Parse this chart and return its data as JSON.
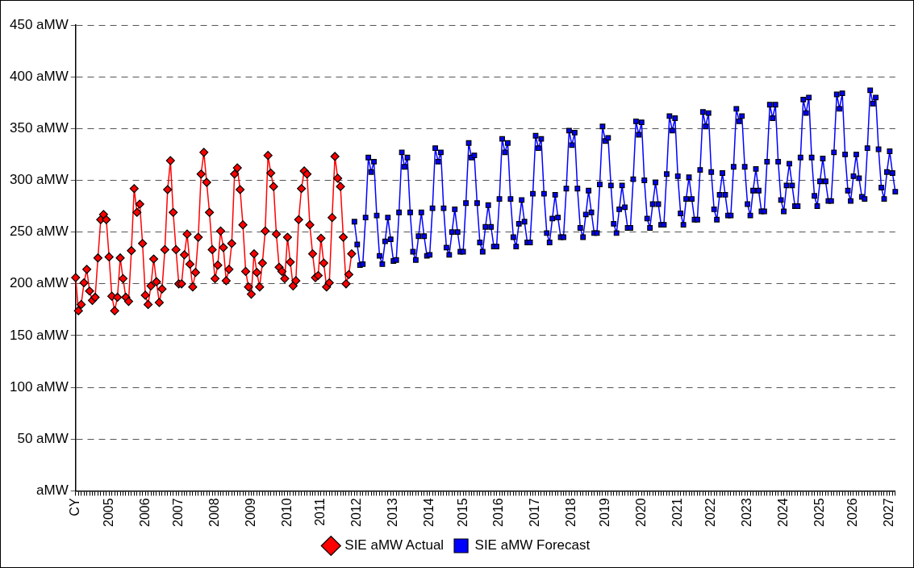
{
  "chart_data": {
    "type": "line",
    "categories": [
      "CY",
      null,
      null,
      null,
      null,
      null,
      null,
      null,
      null,
      null,
      null,
      null,
      "2005",
      null,
      null,
      null,
      null,
      null,
      null,
      null,
      null,
      null,
      null,
      null,
      null,
      "2006",
      null,
      null,
      null,
      null,
      null,
      null,
      null,
      null,
      null,
      null,
      null,
      "2007",
      null,
      null,
      null,
      null,
      null,
      null,
      null,
      null,
      null,
      null,
      null,
      null,
      "2008",
      null,
      null,
      null,
      null,
      null,
      null,
      null,
      null,
      null,
      null,
      null,
      null,
      "2009",
      null,
      null,
      null,
      null,
      null,
      null,
      null,
      null,
      null,
      null,
      null,
      null,
      "2010",
      null,
      null,
      null,
      null,
      null,
      null,
      null,
      null,
      null,
      null,
      null,
      "2011",
      null,
      null,
      null,
      null,
      null,
      null,
      null,
      null,
      null,
      null,
      null,
      null,
      "2012",
      null,
      null,
      null,
      null,
      null,
      null,
      null,
      null,
      null,
      null,
      null,
      null,
      "2013",
      null,
      null,
      null,
      null,
      null,
      null,
      null,
      null,
      null,
      null,
      null,
      null,
      "2014",
      null,
      null,
      null,
      null,
      null,
      null,
      null,
      null,
      null,
      null,
      null,
      "2015",
      null,
      null,
      null,
      null,
      null,
      null,
      null,
      null,
      null,
      null,
      null,
      null,
      "2016",
      null,
      null,
      null,
      null,
      null,
      null,
      null,
      null,
      null,
      null,
      null,
      null,
      "2017",
      null,
      null,
      null,
      null,
      null,
      null,
      null,
      null,
      null,
      null,
      null,
      null,
      "2018",
      null,
      null,
      null,
      null,
      null,
      null,
      null,
      null,
      null,
      null,
      null,
      "2019",
      null,
      null,
      null,
      null,
      null,
      null,
      null,
      null,
      null,
      null,
      null,
      null,
      "2020",
      null,
      null,
      null,
      null,
      null,
      null,
      null,
      null,
      null,
      null,
      null,
      null,
      "2021",
      null,
      null,
      null,
      null,
      null,
      null,
      null,
      null,
      null,
      null,
      null,
      "2022",
      null,
      null,
      null,
      null,
      null,
      null,
      null,
      null,
      null,
      null,
      null,
      null,
      "2023",
      null,
      null,
      null,
      null,
      null,
      null,
      null,
      null,
      null,
      null,
      null,
      null,
      "2024",
      null,
      null,
      null,
      null,
      null,
      null,
      null,
      null,
      null,
      null,
      null,
      null,
      "2025",
      null,
      null,
      null,
      null,
      null,
      null,
      null,
      null,
      null,
      null,
      null,
      "2026",
      null,
      null,
      null,
      null,
      null,
      null,
      null,
      null,
      null,
      null,
      null,
      null,
      "2027",
      null,
      null
    ],
    "series": [
      {
        "name": "SIE aMW Actual",
        "color": "#ff0000",
        "marker": "diamond",
        "values": [
          206,
          174,
          180,
          201,
          214,
          193,
          184,
          187,
          225,
          262,
          267,
          262,
          226,
          188,
          174,
          187,
          225,
          205,
          187,
          183,
          232,
          292,
          269,
          277,
          239,
          189,
          180,
          198,
          224,
          202,
          182,
          195,
          233,
          291,
          319,
          269,
          233,
          200,
          200,
          228,
          248,
          219,
          197,
          211,
          245,
          306,
          327,
          298,
          269,
          233,
          205,
          218,
          251,
          235,
          203,
          214,
          239,
          306,
          312,
          291,
          257,
          212,
          197,
          190,
          229,
          211,
          197,
          220,
          251,
          324,
          307,
          294,
          248,
          216,
          212,
          205,
          245,
          221,
          198,
          203,
          262,
          292,
          309,
          306,
          257,
          229,
          206,
          208,
          244,
          220,
          197,
          201,
          264,
          323,
          302,
          294,
          245,
          200,
          209,
          229,
          null,
          null,
          null,
          null,
          null,
          null,
          null,
          null,
          null,
          null,
          null,
          null,
          null,
          null,
          null,
          null,
          null,
          null,
          null,
          null,
          null,
          null,
          null,
          null,
          null,
          null,
          null,
          null,
          null,
          null,
          null,
          null,
          null,
          null,
          null,
          null,
          null,
          null,
          null,
          null,
          null,
          null,
          null,
          null,
          null,
          null,
          null,
          null,
          null,
          null,
          null,
          null,
          null,
          null,
          null,
          null,
          null,
          null,
          null,
          null,
          null,
          null,
          null,
          null,
          null,
          null,
          null,
          null,
          null,
          null,
          null,
          null,
          null,
          null,
          null,
          null,
          null,
          null,
          null,
          null,
          null,
          null,
          null,
          null,
          null,
          null,
          null,
          null,
          null,
          null,
          null,
          null,
          null,
          null,
          null,
          null,
          null,
          null,
          null,
          null,
          null,
          null,
          null,
          null,
          null,
          null,
          null,
          null,
          null,
          null,
          null,
          null,
          null,
          null,
          null,
          null,
          null,
          null,
          null,
          null,
          null,
          null,
          null,
          null,
          null,
          null,
          null,
          null,
          null,
          null,
          null,
          null,
          null,
          null,
          null,
          null,
          null,
          null,
          null,
          null,
          null,
          null,
          null,
          null,
          null,
          null,
          null,
          null,
          null,
          null,
          null,
          null,
          null,
          null,
          null,
          null,
          null,
          null,
          null,
          null,
          null,
          null,
          null,
          null,
          null,
          null,
          null,
          null,
          null,
          null,
          null,
          null,
          null,
          null,
          null,
          null,
          null,
          null,
          null,
          null,
          null,
          null,
          null,
          null,
          null,
          null,
          null,
          null,
          null,
          null,
          null,
          null,
          null,
          null,
          null
        ]
      },
      {
        "name": "SIE aMW Forecast",
        "color": "#0000ff",
        "marker": "square",
        "values": [
          null,
          null,
          null,
          null,
          null,
          null,
          null,
          null,
          null,
          null,
          null,
          null,
          null,
          null,
          null,
          null,
          null,
          null,
          null,
          null,
          null,
          null,
          null,
          null,
          null,
          null,
          null,
          null,
          null,
          null,
          null,
          null,
          null,
          null,
          null,
          null,
          null,
          null,
          null,
          null,
          null,
          null,
          null,
          null,
          null,
          null,
          null,
          null,
          null,
          null,
          null,
          null,
          null,
          null,
          null,
          null,
          null,
          null,
          null,
          null,
          null,
          null,
          null,
          null,
          null,
          null,
          null,
          null,
          null,
          null,
          null,
          null,
          null,
          null,
          null,
          null,
          null,
          null,
          null,
          null,
          null,
          null,
          null,
          null,
          null,
          null,
          null,
          null,
          null,
          null,
          null,
          null,
          null,
          null,
          null,
          null,
          null,
          null,
          null,
          null,
          260,
          238,
          218,
          219,
          264,
          322,
          308,
          318,
          266,
          227,
          219,
          241,
          264,
          243,
          222,
          223,
          269,
          327,
          313,
          322,
          269,
          231,
          223,
          246,
          269,
          246,
          227,
          228,
          273,
          331,
          318,
          327,
          273,
          235,
          228,
          250,
          272,
          250,
          231,
          231,
          278,
          336,
          322,
          324,
          278,
          240,
          231,
          255,
          276,
          255,
          236,
          236,
          282,
          340,
          327,
          336,
          282,
          245,
          236,
          258,
          281,
          260,
          240,
          240,
          287,
          343,
          331,
          340,
          287,
          249,
          240,
          263,
          286,
          264,
          245,
          245,
          292,
          348,
          334,
          346,
          292,
          254,
          245,
          267,
          290,
          269,
          249,
          249,
          296,
          352,
          338,
          341,
          295,
          258,
          249,
          272,
          295,
          274,
          254,
          254,
          301,
          357,
          344,
          356,
          300,
          263,
          254,
          277,
          298,
          277,
          257,
          257,
          306,
          362,
          348,
          360,
          304,
          268,
          257,
          282,
          303,
          282,
          262,
          262,
          310,
          366,
          352,
          365,
          308,
          272,
          262,
          286,
          307,
          286,
          266,
          266,
          313,
          369,
          357,
          362,
          313,
          277,
          266,
          290,
          311,
          290,
          270,
          270,
          318,
          373,
          360,
          373,
          318,
          281,
          270,
          295,
          316,
          295,
          275,
          275,
          322,
          378,
          365,
          380,
          322,
          285,
          275,
          299,
          321,
          299,
          280,
          280,
          327,
          383,
          369,
          384,
          325,
          290,
          280,
          304,
          325,
          302,
          284,
          282,
          331,
          387,
          374,
          380,
          330,
          293,
          282,
          308,
          328,
          307,
          289
        ]
      }
    ],
    "ylim": [
      0,
      450
    ],
    "yticks": [
      {
        "value": 0,
        "label": "aMW"
      },
      {
        "value": 50,
        "label": "50 aMW"
      },
      {
        "value": 100,
        "label": "100 aMW"
      },
      {
        "value": 150,
        "label": "150 aMW"
      },
      {
        "value": 200,
        "label": "200 aMW"
      },
      {
        "value": 250,
        "label": "250 aMW"
      },
      {
        "value": 300,
        "label": "300 aMW"
      },
      {
        "value": 350,
        "label": "350 aMW"
      },
      {
        "value": 400,
        "label": "400 aMW"
      },
      {
        "value": 450,
        "label": "450 aMW"
      }
    ],
    "grid": "y",
    "legend": "bottom",
    "line_style": "solid"
  }
}
